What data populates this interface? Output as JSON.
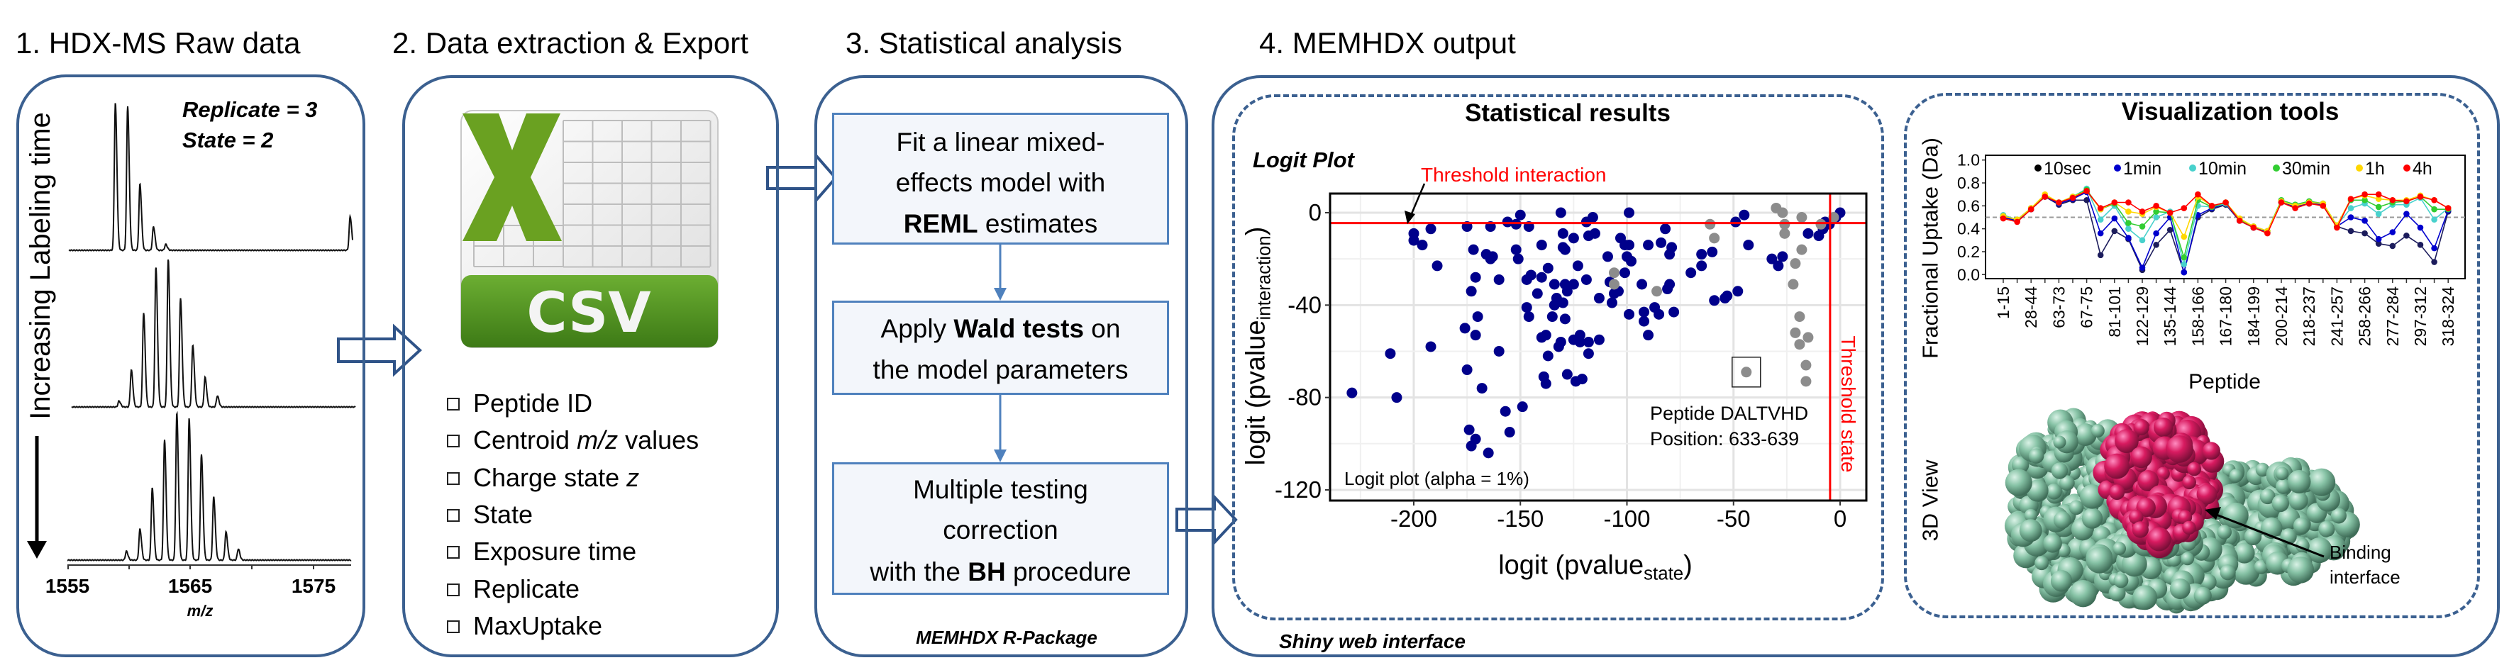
{
  "panel1": {
    "title": "1. HDX-MS Raw data",
    "replicate": "Replicate = 3",
    "state": "State = 2",
    "time_label": "Increasing Labeling time",
    "x_ticks": [
      "1555",
      "1565",
      "1575"
    ],
    "x_label": "m/z",
    "spectra": [
      {
        "mz": [
          1558.9,
          1559.9,
          1560.9,
          1562.0,
          1563.0,
          1578.0
        ],
        "intensity": [
          1.0,
          0.98,
          0.45,
          0.16,
          0.04,
          0.23
        ]
      },
      {
        "mz": [
          1559.2,
          1560.2,
          1561.2,
          1562.2,
          1563.2,
          1564.2,
          1565.2,
          1566.2,
          1567.2
        ],
        "intensity": [
          0.04,
          0.25,
          0.64,
          0.95,
          1.0,
          0.74,
          0.42,
          0.2,
          0.075
        ]
      },
      {
        "mz": [
          1559.8,
          1560.9,
          1561.9,
          1562.9,
          1563.9,
          1564.9,
          1565.9,
          1566.9,
          1567.9,
          1568.9
        ],
        "intensity": [
          0.06,
          0.21,
          0.49,
          0.82,
          1.0,
          0.96,
          0.72,
          0.43,
          0.19,
          0.075
        ]
      }
    ]
  },
  "panel2": {
    "title": "2. Data extraction & Export",
    "csv_label": "CSV",
    "items": [
      {
        "pre": "Peptide ID",
        "ital": "",
        "post": ""
      },
      {
        "pre": "Centroid ",
        "ital": "m/z",
        "post": " values"
      },
      {
        "pre": "Charge state ",
        "ital": "z",
        "post": ""
      },
      {
        "pre": "State",
        "ital": "",
        "post": ""
      },
      {
        "pre": "Exposure time",
        "ital": "",
        "post": ""
      },
      {
        "pre": "Replicate",
        "ital": "",
        "post": ""
      },
      {
        "pre": "MaxUptake",
        "ital": "",
        "post": ""
      }
    ]
  },
  "panel3": {
    "title": "3. Statistical analysis",
    "step1": {
      "l1": "Fit a linear mixed-",
      "l2": "effects model with",
      "l3_bold": "REML",
      "l3_post": " estimates"
    },
    "step2": {
      "l1_pre": "Apply ",
      "l1_bold": "Wald tests",
      "l1_post": " on",
      "l2": "the model parameters"
    },
    "step3": {
      "l1": "Multiple testing",
      "l2": "correction",
      "l3_pre": "with the ",
      "l3_bold": "BH",
      "l3_post": " procedure"
    },
    "footer": "MEMHDX R-Package"
  },
  "panel4": {
    "title": "4. MEMHDX output",
    "footer": "Shiny web interface",
    "stats": {
      "title": "Statistical results",
      "plot_label": "Logit Plot",
      "threshold_interaction": "Threshold interaction",
      "threshold_state": "Threshold state",
      "annotation_line1": "Peptide DALTVHD",
      "annotation_line2": "Position: 633-639",
      "alpha_note": "Logit plot (alpha = 1%)",
      "xlabel_main": "logit (pvalue",
      "xlabel_sub": "state",
      "xlabel_end": ")",
      "ylabel_main": "logit (pvalue",
      "ylabel_sub": "interaction",
      "ylabel_end": ")"
    },
    "viz": {
      "title": "Visualization tools",
      "ylabel": "Fractional Uptake (Da)",
      "xlabel": "Peptide",
      "view_label": "3D View",
      "binding_line1": "Binding",
      "binding_line2": "interface",
      "protein_colors": {
        "body": "#7fbfa0",
        "interface": "#d81b60"
      }
    }
  },
  "chart_data": [
    {
      "type": "scatter",
      "title": "Logit Plot",
      "xlabel": "logit (pvalue state)",
      "ylabel": "logit (pvalue interaction)",
      "xlim": [
        -239,
        12
      ],
      "ylim": [
        -124,
        9
      ],
      "x_ticks": [
        -200,
        -150,
        -100,
        -50,
        0
      ],
      "y_ticks": [
        0,
        -40,
        -80,
        -120
      ],
      "grid": true,
      "thresholds": {
        "interaction": -4.5,
        "state": -4.7
      },
      "highlight": [
        -44,
        -69
      ],
      "series": [
        {
          "color": "#00008b",
          "points": [
            [
              -229,
              -78
            ],
            [
              -211,
              -61
            ],
            [
              -208,
              -80
            ],
            [
              -200,
              -9
            ],
            [
              -200,
              -12
            ],
            [
              -196,
              -14
            ],
            [
              -192,
              -7
            ],
            [
              -192,
              -58
            ],
            [
              -189,
              -23
            ],
            [
              -175,
              -6
            ],
            [
              -176,
              -50
            ],
            [
              -175,
              -68
            ],
            [
              -174,
              -94
            ],
            [
              -173,
              -34
            ],
            [
              -172,
              -16
            ],
            [
              -171,
              -98
            ],
            [
              -173,
              -101
            ],
            [
              -171,
              -53
            ],
            [
              -171,
              -28
            ],
            [
              -170,
              -45
            ],
            [
              -168,
              -76
            ],
            [
              -166,
              -18
            ],
            [
              -164,
              -20
            ],
            [
              -163,
              -19
            ],
            [
              -164,
              -6
            ],
            [
              -165,
              -104
            ],
            [
              -160,
              -29
            ],
            [
              -160,
              -60
            ],
            [
              -157,
              -86
            ],
            [
              -156,
              -4
            ],
            [
              -155,
              -95
            ],
            [
              -152,
              -16
            ],
            [
              -151,
              -20
            ],
            [
              -152,
              -5
            ],
            [
              -150,
              -1
            ],
            [
              -149,
              -84
            ],
            [
              -147,
              -29
            ],
            [
              -147,
              -41
            ],
            [
              -146,
              -6
            ],
            [
              -146,
              -45
            ],
            [
              -145,
              -27
            ],
            [
              -142,
              -35
            ],
            [
              -140,
              -14
            ],
            [
              -140,
              -28
            ],
            [
              -140,
              -54
            ],
            [
              -139,
              -71
            ],
            [
              -138,
              -74
            ],
            [
              -138,
              -53
            ],
            [
              -137,
              -62
            ],
            [
              -137,
              -24
            ],
            [
              -135,
              -45
            ],
            [
              -134,
              -31
            ],
            [
              -134,
              -40
            ],
            [
              -133,
              -37
            ],
            [
              -132,
              -58
            ],
            [
              -131,
              -56
            ],
            [
              -131,
              0
            ],
            [
              -130,
              -9
            ],
            [
              -130,
              -15
            ],
            [
              -129,
              -16
            ],
            [
              -130,
              -39
            ],
            [
              -129,
              -46
            ],
            [
              -129,
              -31
            ],
            [
              -128,
              -34
            ],
            [
              -128,
              -70
            ],
            [
              -125,
              -31
            ],
            [
              -125,
              -11
            ],
            [
              -125,
              -55
            ],
            [
              -124,
              -73
            ],
            [
              -123,
              -23
            ],
            [
              -122,
              -53
            ],
            [
              -122,
              -56
            ],
            [
              -121,
              -72
            ],
            [
              -119,
              -4
            ],
            [
              -119,
              -29
            ],
            [
              -118,
              -56
            ],
            [
              -118,
              -61
            ],
            [
              -118,
              -10
            ],
            [
              -116,
              -2
            ],
            [
              -115,
              -9
            ],
            [
              -113,
              -37
            ],
            [
              -113,
              -55
            ],
            [
              -109,
              -19
            ],
            [
              -107,
              -39
            ],
            [
              -108,
              -30
            ],
            [
              -106,
              -35
            ],
            [
              -104,
              -34
            ],
            [
              -103,
              -11
            ],
            [
              -101,
              -14
            ],
            [
              -101,
              -26
            ],
            [
              -100,
              -19
            ],
            [
              -99,
              -14
            ],
            [
              -99,
              0
            ],
            [
              -99,
              -44
            ],
            [
              -98,
              -21
            ],
            [
              -93,
              -31
            ],
            [
              -92,
              -43
            ],
            [
              -92,
              -47
            ],
            [
              -90,
              -53
            ],
            [
              -90,
              -14
            ],
            [
              -87,
              -41
            ],
            [
              -85,
              -44
            ],
            [
              -84,
              -13
            ],
            [
              -82,
              -7
            ],
            [
              -81,
              -33
            ],
            [
              -80,
              -31
            ],
            [
              -80,
              -18
            ],
            [
              -79,
              -15
            ],
            [
              -78,
              -43
            ],
            [
              -70,
              -26
            ],
            [
              -65,
              -23
            ],
            [
              -65,
              -18
            ],
            [
              -60,
              -17
            ],
            [
              -59,
              -38
            ],
            [
              -54,
              -37
            ],
            [
              -53,
              -36
            ],
            [
              -49,
              -4
            ],
            [
              -48,
              -34
            ],
            [
              -45,
              -1
            ],
            [
              -43,
              -14
            ],
            [
              -32,
              -20
            ],
            [
              -29,
              -23
            ],
            [
              -27,
              -19
            ],
            [
              -15,
              -9
            ],
            [
              -10,
              -10
            ],
            [
              -8,
              -7
            ],
            [
              -7,
              -4
            ],
            [
              -5,
              -5
            ],
            [
              -2,
              -2
            ],
            [
              0,
              0
            ]
          ]
        },
        {
          "color": "#8c8c8c",
          "points": [
            [
              -106,
              -26
            ],
            [
              -106,
              -31
            ],
            [
              -86,
              -34
            ],
            [
              -61,
              -5
            ],
            [
              -59,
              -11
            ],
            [
              -44,
              -69
            ],
            [
              -30,
              2
            ],
            [
              -27,
              0
            ],
            [
              -26,
              -5
            ],
            [
              -26,
              -9
            ],
            [
              -18,
              -2
            ],
            [
              -18,
              -16
            ],
            [
              -21,
              -22
            ],
            [
              -22,
              -31
            ],
            [
              -19,
              -45
            ],
            [
              -21,
              -52
            ],
            [
              -15,
              -54
            ],
            [
              -19,
              -57
            ],
            [
              -16,
              -66
            ],
            [
              -16,
              -73
            ],
            [
              -9,
              -5
            ],
            [
              -3,
              -2
            ]
          ]
        }
      ]
    },
    {
      "type": "line",
      "xlabel": "Peptide",
      "ylabel": "Fractional Uptake (Da)",
      "ylim": [
        -0.04,
        1.04
      ],
      "y_ticks": [
        0.0,
        0.2,
        0.4,
        0.6,
        0.8,
        1.0
      ],
      "reference_line": 0.5,
      "legend_position": "top",
      "tick_labels": [
        "1-15",
        "28-44",
        "63-73",
        "67-75",
        "81-101",
        "122-129",
        "135-144",
        "158-166",
        "167-180",
        "184-199",
        "200-214",
        "218-237",
        "241-257",
        "258-266",
        "277-284",
        "297-312",
        "318-324"
      ],
      "series": [
        {
          "name": "10sec",
          "color": "#1c1c5c",
          "legend_color": "#000000",
          "values": [
            0.5,
            0.47,
            0.57,
            0.68,
            0.61,
            0.65,
            0.65,
            0.17,
            0.38,
            0.31,
            0.04,
            0.26,
            0.39,
            0.02,
            0.5,
            0.57,
            0.61,
            0.47,
            0.41,
            0.37,
            0.63,
            0.59,
            0.62,
            0.61,
            0.42,
            0.38,
            0.36,
            0.27,
            0.25,
            0.34,
            0.26,
            0.11,
            0.55
          ]
        },
        {
          "name": "1min",
          "color": "#0000cd",
          "legend_color": "#0000cd",
          "values": [
            0.5,
            0.47,
            0.57,
            0.68,
            0.62,
            0.66,
            0.72,
            0.36,
            0.49,
            0.32,
            0.06,
            0.36,
            0.5,
            0.02,
            0.52,
            0.58,
            0.62,
            0.47,
            0.41,
            0.37,
            0.63,
            0.59,
            0.62,
            0.61,
            0.42,
            0.5,
            0.47,
            0.31,
            0.37,
            0.53,
            0.41,
            0.23,
            0.56
          ]
        },
        {
          "name": "10min",
          "color": "#48d1cc",
          "legend_color": "#48d1cc",
          "values": [
            0.52,
            0.48,
            0.58,
            0.69,
            0.63,
            0.68,
            0.75,
            0.48,
            0.6,
            0.4,
            0.3,
            0.5,
            0.55,
            0.09,
            0.6,
            0.59,
            0.62,
            0.48,
            0.42,
            0.38,
            0.65,
            0.61,
            0.64,
            0.62,
            0.43,
            0.58,
            0.62,
            0.53,
            0.61,
            0.61,
            0.67,
            0.48,
            0.58
          ]
        },
        {
          "name": "30min",
          "color": "#32cd32",
          "legend_color": "#32cd32",
          "values": [
            0.51,
            0.48,
            0.58,
            0.69,
            0.63,
            0.68,
            0.74,
            0.57,
            0.62,
            0.45,
            0.42,
            0.55,
            0.54,
            0.15,
            0.65,
            0.59,
            0.63,
            0.48,
            0.42,
            0.38,
            0.65,
            0.61,
            0.64,
            0.62,
            0.43,
            0.65,
            0.65,
            0.59,
            0.63,
            0.64,
            0.68,
            0.57,
            0.57
          ]
        },
        {
          "name": "1h",
          "color": "#ffd700",
          "legend_color": "#ffd700",
          "values": [
            0.51,
            0.48,
            0.58,
            0.7,
            0.63,
            0.68,
            0.73,
            0.57,
            0.63,
            0.55,
            0.53,
            0.59,
            0.54,
            0.33,
            0.68,
            0.6,
            0.63,
            0.49,
            0.42,
            0.38,
            0.64,
            0.6,
            0.63,
            0.62,
            0.43,
            0.66,
            0.69,
            0.66,
            0.65,
            0.65,
            0.69,
            0.65,
            0.58
          ]
        },
        {
          "name": "4h",
          "color": "#ff0000",
          "legend_color": "#ff0000",
          "values": [
            0.49,
            0.46,
            0.57,
            0.68,
            0.63,
            0.67,
            0.73,
            0.58,
            0.63,
            0.63,
            0.55,
            0.6,
            0.54,
            0.58,
            0.7,
            0.6,
            0.63,
            0.47,
            0.41,
            0.36,
            0.63,
            0.58,
            0.62,
            0.6,
            0.41,
            0.66,
            0.7,
            0.7,
            0.65,
            0.64,
            0.68,
            0.65,
            0.58
          ]
        }
      ]
    }
  ]
}
